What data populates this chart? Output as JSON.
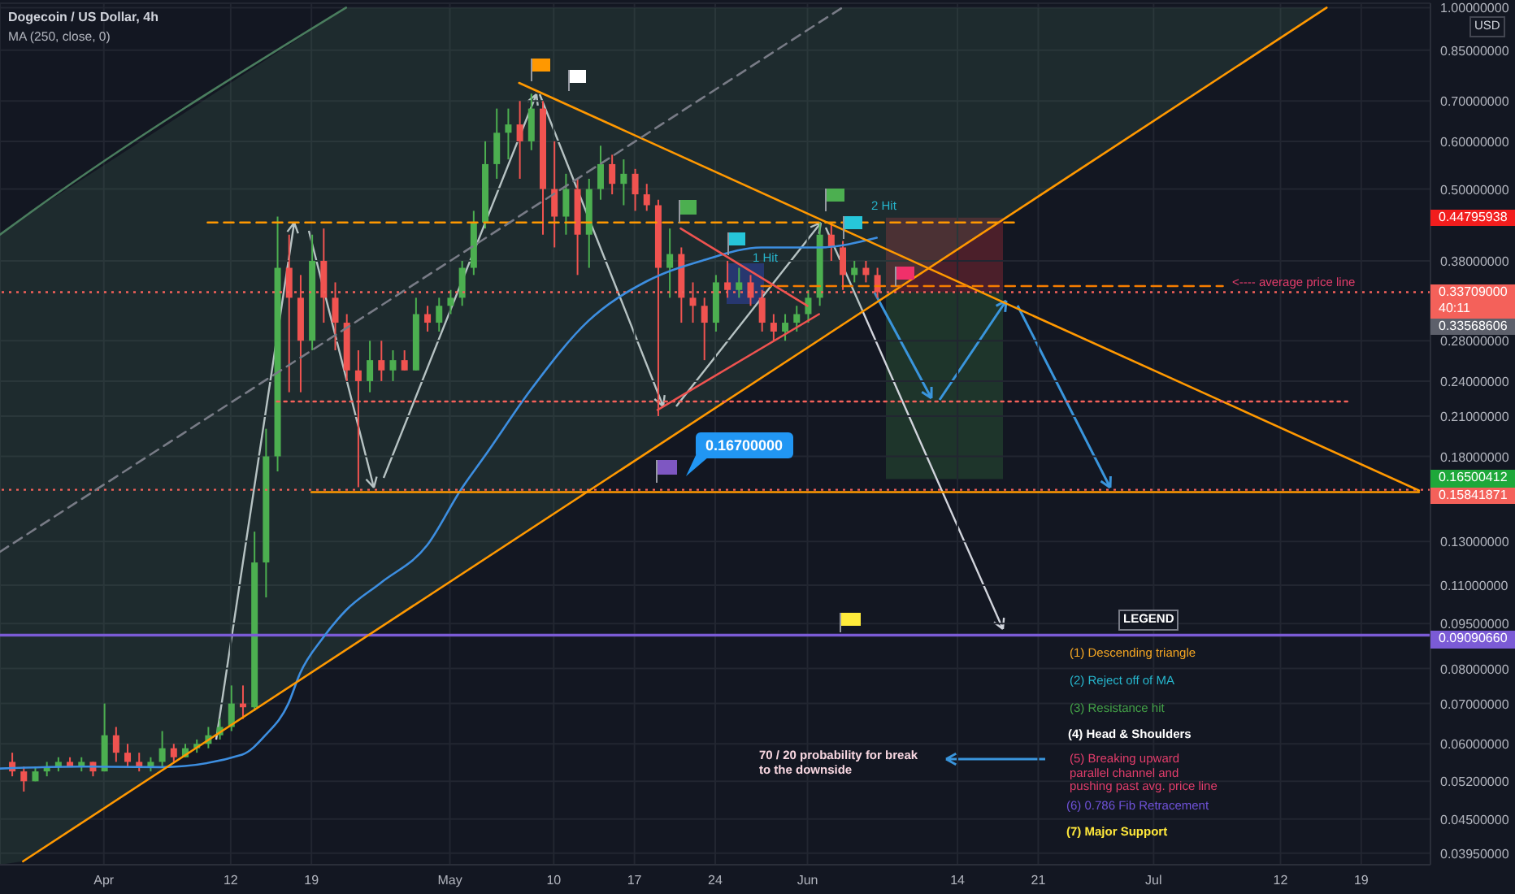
{
  "chart_data": {
    "type": "candlestick",
    "title": "Dogecoin / US Dollar, 4h",
    "subtitle": "MA (250, close, 0)",
    "x": [
      "--03-24",
      "--03-25",
      "--03-26",
      "--03-27",
      "--03-28",
      "--03-29",
      "--03-30",
      "--03-31",
      "--04-01",
      "--04-02",
      "--04-03",
      "--04-04",
      "--04-05",
      "--04-06",
      "--04-07",
      "--04-08",
      "--04-09",
      "--04-10",
      "--04-11",
      "--04-12",
      "--04-13",
      "--04-14",
      "--04-15",
      "--04-16",
      "--04-17",
      "--04-18",
      "--04-19",
      "--04-20",
      "--04-21",
      "--04-22",
      "--04-23",
      "--04-24",
      "--04-25",
      "--04-26",
      "--04-27",
      "--04-28",
      "--04-29",
      "--04-30",
      "--05-01",
      "--05-02",
      "--05-03",
      "--05-04",
      "--05-05",
      "--05-06",
      "--05-07",
      "--05-08",
      "--05-09",
      "--05-10",
      "--05-11",
      "--05-12",
      "--05-13",
      "--05-14",
      "--05-15",
      "--05-16",
      "--05-17",
      "--05-18",
      "--05-19",
      "--05-20",
      "--05-21",
      "--05-22",
      "--05-23",
      "--05-24",
      "--05-25",
      "--05-26",
      "--05-27",
      "--05-28",
      "--05-29",
      "--05-30",
      "--05-31",
      "--06-01",
      "--06-02",
      "--06-03",
      "--06-04",
      "--06-05",
      "--06-06",
      "--06-07"
    ],
    "ohlc": [
      [
        0.056,
        0.058,
        0.053,
        0.054
      ],
      [
        0.054,
        0.055,
        0.05,
        0.052
      ],
      [
        0.052,
        0.055,
        0.052,
        0.054
      ],
      [
        0.054,
        0.056,
        0.053,
        0.055
      ],
      [
        0.055,
        0.057,
        0.054,
        0.056
      ],
      [
        0.056,
        0.057,
        0.055,
        0.055
      ],
      [
        0.055,
        0.057,
        0.054,
        0.056
      ],
      [
        0.056,
        0.056,
        0.053,
        0.054
      ],
      [
        0.054,
        0.07,
        0.054,
        0.062
      ],
      [
        0.062,
        0.064,
        0.056,
        0.058
      ],
      [
        0.058,
        0.06,
        0.055,
        0.056
      ],
      [
        0.056,
        0.058,
        0.054,
        0.055
      ],
      [
        0.055,
        0.057,
        0.054,
        0.056
      ],
      [
        0.056,
        0.063,
        0.055,
        0.059
      ],
      [
        0.059,
        0.06,
        0.056,
        0.057
      ],
      [
        0.057,
        0.06,
        0.057,
        0.059
      ],
      [
        0.059,
        0.061,
        0.058,
        0.06
      ],
      [
        0.06,
        0.064,
        0.059,
        0.062
      ],
      [
        0.062,
        0.066,
        0.061,
        0.064
      ],
      [
        0.064,
        0.075,
        0.063,
        0.07
      ],
      [
        0.07,
        0.075,
        0.066,
        0.069
      ],
      [
        0.069,
        0.135,
        0.068,
        0.12
      ],
      [
        0.12,
        0.2,
        0.105,
        0.18
      ],
      [
        0.18,
        0.45,
        0.17,
        0.37
      ],
      [
        0.37,
        0.42,
        0.23,
        0.33
      ],
      [
        0.33,
        0.36,
        0.23,
        0.28
      ],
      [
        0.28,
        0.42,
        0.27,
        0.38
      ],
      [
        0.38,
        0.43,
        0.3,
        0.33
      ],
      [
        0.33,
        0.35,
        0.27,
        0.3
      ],
      [
        0.3,
        0.31,
        0.24,
        0.25
      ],
      [
        0.25,
        0.27,
        0.16,
        0.24
      ],
      [
        0.24,
        0.28,
        0.23,
        0.26
      ],
      [
        0.26,
        0.28,
        0.24,
        0.25
      ],
      [
        0.25,
        0.27,
        0.24,
        0.26
      ],
      [
        0.26,
        0.27,
        0.25,
        0.25
      ],
      [
        0.25,
        0.33,
        0.25,
        0.31
      ],
      [
        0.31,
        0.32,
        0.29,
        0.3
      ],
      [
        0.3,
        0.33,
        0.29,
        0.32
      ],
      [
        0.32,
        0.34,
        0.31,
        0.33
      ],
      [
        0.33,
        0.38,
        0.32,
        0.37
      ],
      [
        0.37,
        0.46,
        0.36,
        0.44
      ],
      [
        0.44,
        0.6,
        0.43,
        0.55
      ],
      [
        0.55,
        0.68,
        0.52,
        0.62
      ],
      [
        0.62,
        0.68,
        0.56,
        0.64
      ],
      [
        0.64,
        0.7,
        0.52,
        0.6
      ],
      [
        0.6,
        0.72,
        0.58,
        0.68
      ],
      [
        0.68,
        0.7,
        0.42,
        0.5
      ],
      [
        0.5,
        0.6,
        0.4,
        0.45
      ],
      [
        0.45,
        0.53,
        0.42,
        0.5
      ],
      [
        0.5,
        0.52,
        0.36,
        0.42
      ],
      [
        0.42,
        0.52,
        0.37,
        0.5
      ],
      [
        0.5,
        0.59,
        0.48,
        0.55
      ],
      [
        0.55,
        0.57,
        0.49,
        0.51
      ],
      [
        0.51,
        0.56,
        0.47,
        0.53
      ],
      [
        0.53,
        0.54,
        0.46,
        0.49
      ],
      [
        0.49,
        0.51,
        0.46,
        0.47
      ],
      [
        0.47,
        0.48,
        0.21,
        0.37
      ],
      [
        0.37,
        0.43,
        0.33,
        0.39
      ],
      [
        0.39,
        0.4,
        0.3,
        0.33
      ],
      [
        0.33,
        0.35,
        0.3,
        0.32
      ],
      [
        0.32,
        0.33,
        0.26,
        0.3
      ],
      [
        0.3,
        0.36,
        0.29,
        0.35
      ],
      [
        0.35,
        0.38,
        0.33,
        0.34
      ],
      [
        0.34,
        0.37,
        0.33,
        0.35
      ],
      [
        0.35,
        0.36,
        0.32,
        0.33
      ],
      [
        0.33,
        0.34,
        0.29,
        0.3
      ],
      [
        0.3,
        0.31,
        0.28,
        0.29
      ],
      [
        0.29,
        0.31,
        0.28,
        0.3
      ],
      [
        0.3,
        0.32,
        0.29,
        0.31
      ],
      [
        0.31,
        0.34,
        0.3,
        0.33
      ],
      [
        0.33,
        0.44,
        0.32,
        0.42
      ],
      [
        0.42,
        0.44,
        0.38,
        0.4
      ],
      [
        0.4,
        0.41,
        0.34,
        0.36
      ],
      [
        0.36,
        0.38,
        0.35,
        0.37
      ],
      [
        0.37,
        0.38,
        0.35,
        0.36
      ],
      [
        0.36,
        0.37,
        0.33,
        0.33709
      ]
    ],
    "colors": [
      "#f05350",
      "#f05350",
      "#4caf50",
      "#4caf50",
      "#4caf50",
      "#f05350",
      "#4caf50",
      "#f05350",
      "#4caf50",
      "#f05350",
      "#f05350",
      "#f05350",
      "#4caf50",
      "#4caf50",
      "#f05350",
      "#4caf50",
      "#4caf50",
      "#4caf50",
      "#4caf50",
      "#4caf50",
      "#f05350",
      "#4caf50",
      "#4caf50",
      "#4caf50",
      "#f05350",
      "#f05350",
      "#4caf50",
      "#f05350",
      "#f05350",
      "#f05350",
      "#f05350",
      "#4caf50",
      "#f05350",
      "#4caf50",
      "#f05350",
      "#4caf50",
      "#f05350",
      "#4caf50",
      "#4caf50",
      "#4caf50",
      "#4caf50",
      "#4caf50",
      "#4caf50",
      "#4caf50",
      "#f05350",
      "#4caf50",
      "#f05350",
      "#f05350",
      "#4caf50",
      "#f05350",
      "#4caf50",
      "#4caf50",
      "#f05350",
      "#4caf50",
      "#f05350",
      "#f05350",
      "#f05350",
      "#4caf50",
      "#f05350",
      "#f05350",
      "#f05350",
      "#4caf50",
      "#f05350",
      "#4caf50",
      "#f05350",
      "#f05350",
      "#f05350",
      "#4caf50",
      "#4caf50",
      "#4caf50",
      "#4caf50",
      "#f05350",
      "#f05350",
      "#4caf50",
      "#f05350",
      "#f05350"
    ],
    "series": [
      {
        "type": "line",
        "color": "#3d8ee0",
        "x": [
          "--03-23",
          "--03-30",
          "--04-06",
          "--04-13",
          "--04-15",
          "--04-17",
          "--04-18",
          "--04-20",
          "--04-22",
          "--04-25",
          "--04-29",
          "--05-02",
          "--05-04",
          "--05-08",
          "--05-13",
          "--05-18",
          "--05-23",
          "--05-28",
          "--06-02",
          "--06-07"
        ],
        "values": [
          0.0546,
          0.055,
          0.0549,
          0.0576,
          0.062,
          0.07,
          0.0785,
          0.09,
          0.1,
          0.111,
          0.128,
          0.159,
          0.18,
          0.232,
          0.302,
          0.351,
          0.381,
          0.4,
          0.4,
          0.415
        ],
        "line_style": "solid"
      },
      {
        "type": "line",
        "color": "#ff9800",
        "x": [
          "--03-25",
          "--07-16"
        ],
        "values": [
          0.0383,
          1.0
        ],
        "line_style": "solid"
      },
      {
        "type": "line",
        "color": "#ff9800",
        "x": [
          "--05-07",
          "--07-24"
        ],
        "values": [
          0.75,
          0.158
        ],
        "line_style": "solid"
      },
      {
        "type": "line",
        "color": "#ff9800",
        "x": [
          "--04-10",
          "--06-19"
        ],
        "values": [
          0.44,
          0.44
        ],
        "line_style": "dashed"
      },
      {
        "type": "line",
        "color": "#ff9800",
        "x": [
          "--04-19",
          "--07-24"
        ],
        "values": [
          0.157,
          0.157
        ],
        "line_style": "solid"
      },
      {
        "type": "line",
        "color": "#f4615a",
        "x": [
          "--04-16",
          "--07-18"
        ],
        "values": [
          0.222,
          0.222
        ],
        "line_style": "dotted"
      },
      {
        "type": "line",
        "color": "#f57c00",
        "x": [
          "--05-28",
          "--07-07"
        ],
        "values": [
          0.345,
          0.345
        ],
        "line_style": "dashed"
      },
      {
        "type": "line",
        "color": "#ef5350",
        "x": [
          "--05-21",
          "--06-01"
        ],
        "values": [
          0.43,
          0.32
        ],
        "line_style": "solid"
      },
      {
        "type": "line",
        "color": "#ef5350",
        "x": [
          "--05-19",
          "--06-02"
        ],
        "values": [
          0.215,
          0.31
        ],
        "line_style": "solid"
      },
      {
        "type": "line",
        "color": "#4a7d5e",
        "x": [
          "--03-23",
          "--03-25",
          "--04-22",
          "--07-16"
        ],
        "values": [
          0.42,
          0.448,
          1.0,
          null
        ],
        "lower": [
          0.0378,
          0.0383,
          0.0855,
          1.0
        ],
        "upper": [
          0.42,
          0.448,
          1.0,
          1.0
        ],
        "line_style": "solid"
      },
      {
        "type": "line",
        "color": "#787b86",
        "x": [
          "--03-23",
          "--06-04"
        ],
        "values": [
          0.125,
          1.0
        ],
        "line_style": "dashed"
      }
    ],
    "ref_lines": [
      {
        "axis": "y",
        "value": 0.33709,
        "label": "0.33709000",
        "color": "#f4615a",
        "line_style": "dotted"
      },
      {
        "axis": "y",
        "value": 0.15841871,
        "label": "0.15841871",
        "color": "#f4615a",
        "line_style": "dotted"
      },
      {
        "axis": "y",
        "value": 0.0909066,
        "label": "0.09090660",
        "color": "#7b5bd6",
        "line_style": "solid"
      }
    ],
    "annotations": [
      "LEGEND",
      "(1) Descending triangle",
      "(2) Reject off of MA",
      "(3) Resistance hit",
      "(4) Head & Shoulders",
      "(5) Breaking upward\nparallel channel and\npushing past avg. price line",
      "(6) 0.786 Fib Retracement",
      "(7) Major Support",
      "70 / 20 probability for break\nto the downside",
      "<---- average price line",
      "1 Hit",
      "2 Hit",
      "0.16700000",
      "USD",
      "40:11",
      "0.44795938",
      "0.33568606",
      "0.16500412"
    ],
    "xlim": [
      "--03-23",
      "--07-25"
    ],
    "xticks": [
      {
        "value": "--04-01",
        "label": "Apr"
      },
      {
        "value": "--04-12",
        "label": "12"
      },
      {
        "value": "--04-19",
        "label": "19"
      },
      {
        "value": "--05-01",
        "label": "May"
      },
      {
        "value": "--05-10",
        "label": "10"
      },
      {
        "value": "--05-17",
        "label": "17"
      },
      {
        "value": "--05-24",
        "label": "24"
      },
      {
        "value": "--06-01",
        "label": "Jun"
      },
      {
        "value": "--06-14",
        "label": "14"
      },
      {
        "value": "--06-21",
        "label": "21"
      },
      {
        "value": "--07-01",
        "label": "Jul"
      },
      {
        "value": "--07-12",
        "label": "12"
      },
      {
        "value": "--07-19",
        "label": "19"
      }
    ],
    "ylim": [
      0.0378,
      1.017
    ],
    "yticks": [
      {
        "value": 1.0,
        "label": "1.00000000"
      },
      {
        "value": 0.85,
        "label": "0.85000000"
      },
      {
        "value": 0.7,
        "label": "0.70000000"
      },
      {
        "value": 0.6,
        "label": "0.60000000"
      },
      {
        "value": 0.5,
        "label": "0.50000000"
      },
      {
        "value": 0.38,
        "label": "0.38000000"
      },
      {
        "value": 0.28,
        "label": "0.28000000"
      },
      {
        "value": 0.24,
        "label": "0.24000000"
      },
      {
        "value": 0.21,
        "label": "0.21000000"
      },
      {
        "value": 0.18,
        "label": "0.18000000"
      },
      {
        "value": 0.13,
        "label": "0.13000000"
      },
      {
        "value": 0.11,
        "label": "0.11000000"
      },
      {
        "value": 0.095,
        "label": "0.09500000"
      },
      {
        "value": 0.08,
        "label": "0.08000000"
      },
      {
        "value": 0.07,
        "label": "0.07000000"
      },
      {
        "value": 0.06,
        "label": "0.06000000"
      },
      {
        "value": 0.052,
        "label": "0.05200000"
      },
      {
        "value": 0.045,
        "label": "0.04500000"
      },
      {
        "value": 0.0395,
        "label": "0.03950000"
      }
    ],
    "log": "y",
    "grid": true,
    "marker": "none"
  }
}
